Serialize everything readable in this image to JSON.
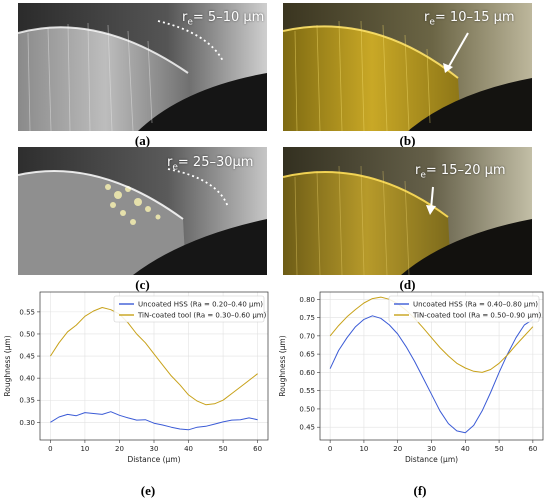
{
  "panels": [
    {
      "id": "a",
      "caption": "(a)",
      "annotation_main": "r",
      "annotation_sub": "e",
      "annotation_value": "= 5–10 μm"
    },
    {
      "id": "b",
      "caption": "(b)",
      "annotation_main": "r",
      "annotation_sub": "e",
      "annotation_value": "= 10–15 μm"
    },
    {
      "id": "c",
      "caption": "(c)",
      "annotation_main": "r",
      "annotation_sub": "e",
      "annotation_value": "= 25–30μm"
    },
    {
      "id": "d",
      "caption": "(d)",
      "annotation_main": "r",
      "annotation_sub": "e",
      "annotation_value": "= 15–20 μm"
    }
  ],
  "chart_captions": {
    "e": "(e)",
    "f": "(f)"
  },
  "colors": {
    "uncoated": "#3b5bd6",
    "coated": "#c8a21a",
    "grid": "#e2e2e2"
  },
  "chart_data": [
    {
      "type": "line",
      "id": "e",
      "xlabel": "Distance (μm)",
      "ylabel": "Roughness (μm)",
      "xlim": [
        -3,
        63
      ],
      "ylim": [
        0.26,
        0.595
      ],
      "xticks": [
        0,
        10,
        20,
        30,
        40,
        50,
        60
      ],
      "yticks": [
        0.3,
        0.35,
        0.4,
        0.45,
        0.5,
        0.55
      ],
      "ytick_labels": [
        "0.30",
        "0.35",
        "0.40",
        "0.45",
        "0.50",
        "0.55"
      ],
      "grid": true,
      "legend_position": "top-right",
      "series": [
        {
          "name": "Uncoated HSS (Ra = 0.20–0.40 μm)",
          "color_key": "uncoated",
          "x": [
            0,
            2.5,
            5,
            7.5,
            10,
            12.5,
            15,
            17.5,
            20,
            22.5,
            25,
            27.5,
            30,
            32.5,
            35,
            37.5,
            40,
            42.5,
            45,
            47.5,
            50,
            52.5,
            55,
            57.5,
            60
          ],
          "y": [
            0.3,
            0.312,
            0.318,
            0.315,
            0.322,
            0.32,
            0.318,
            0.324,
            0.316,
            0.31,
            0.305,
            0.306,
            0.298,
            0.294,
            0.289,
            0.285,
            0.283,
            0.289,
            0.291,
            0.296,
            0.301,
            0.305,
            0.306,
            0.31,
            0.306
          ]
        },
        {
          "name": "TiN-coated tool (Ra = 0.30–0.60 μm)",
          "color_key": "coated",
          "x": [
            0,
            2.5,
            5,
            7.5,
            10,
            12.5,
            15,
            17.5,
            20,
            22.5,
            25,
            27.5,
            30,
            32.5,
            35,
            37.5,
            40,
            42.5,
            45,
            47.5,
            50,
            52.5,
            55,
            57.5,
            60
          ],
          "y": [
            0.45,
            0.48,
            0.505,
            0.52,
            0.54,
            0.552,
            0.56,
            0.555,
            0.545,
            0.525,
            0.5,
            0.48,
            0.455,
            0.43,
            0.405,
            0.385,
            0.362,
            0.348,
            0.34,
            0.342,
            0.35,
            0.365,
            0.38,
            0.395,
            0.41
          ]
        }
      ]
    },
    {
      "type": "line",
      "id": "f",
      "xlabel": "Distance (μm)",
      "ylabel": "Roughness (μm)",
      "xlim": [
        -3,
        63
      ],
      "ylim": [
        0.415,
        0.82
      ],
      "xticks": [
        0,
        10,
        20,
        30,
        40,
        50,
        60
      ],
      "yticks": [
        0.45,
        0.5,
        0.55,
        0.6,
        0.65,
        0.7,
        0.75,
        0.8
      ],
      "ytick_labels": [
        "0.45",
        "0.50",
        "0.55",
        "0.60",
        "0.65",
        "0.70",
        "0.75",
        "0.80"
      ],
      "grid": true,
      "legend_position": "top-right",
      "series": [
        {
          "name": "Uncoated HSS (Ra = 0.40–0.80 μm)",
          "color_key": "uncoated",
          "x": [
            0,
            2.5,
            5,
            7.5,
            10,
            12.5,
            15,
            17.5,
            20,
            22.5,
            25,
            27.5,
            30,
            32.5,
            35,
            37.5,
            40,
            42.5,
            45,
            47.5,
            50,
            52.5,
            55,
            57.5,
            60
          ],
          "y": [
            0.61,
            0.66,
            0.695,
            0.725,
            0.745,
            0.755,
            0.748,
            0.73,
            0.705,
            0.67,
            0.63,
            0.585,
            0.54,
            0.495,
            0.46,
            0.44,
            0.435,
            0.455,
            0.495,
            0.545,
            0.6,
            0.65,
            0.695,
            0.73,
            0.745
          ]
        },
        {
          "name": "TiN-coated tool (Ra = 0.50–0.90 μm)",
          "color_key": "coated",
          "x": [
            0,
            2.5,
            5,
            7.5,
            10,
            12.5,
            15,
            17.5,
            20,
            22.5,
            25,
            27.5,
            30,
            32.5,
            35,
            37.5,
            40,
            42.5,
            45,
            47.5,
            50,
            52.5,
            55,
            57.5,
            60
          ],
          "y": [
            0.7,
            0.728,
            0.752,
            0.772,
            0.79,
            0.802,
            0.806,
            0.8,
            0.788,
            0.77,
            0.748,
            0.722,
            0.695,
            0.668,
            0.645,
            0.625,
            0.612,
            0.603,
            0.6,
            0.608,
            0.625,
            0.648,
            0.675,
            0.7,
            0.725
          ]
        }
      ]
    }
  ]
}
